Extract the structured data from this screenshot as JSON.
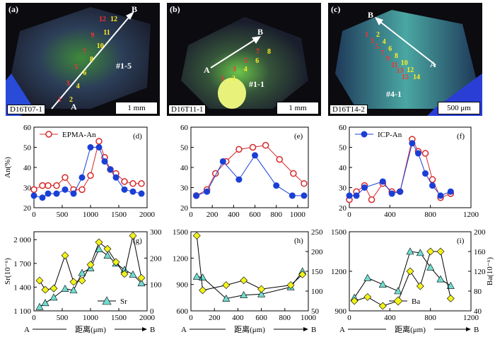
{
  "photos": [
    {
      "label": "(a)",
      "sample": "D16T07-1",
      "scale": "1 mm",
      "zone": "#1-5",
      "pt_a": "A",
      "pt_b": "B",
      "nums_red": [
        "1",
        "3",
        "5",
        "7",
        "9",
        "12"
      ],
      "nums_yel": [
        "2",
        "4",
        "6",
        "8",
        "10",
        "11",
        "12"
      ]
    },
    {
      "label": "(b)",
      "sample": "D16T11-1",
      "scale": "1 mm",
      "zone": "#1-1",
      "pt_a": "A",
      "pt_b": "B",
      "nums_red": [
        "1",
        "3",
        "5",
        "7"
      ],
      "nums_yel": [
        "2",
        "4",
        "6",
        "8"
      ]
    },
    {
      "label": "(c)",
      "sample": "D16T14-2",
      "scale": "500 μm",
      "zone": "#4-1",
      "pt_a": "A",
      "pt_b": "B",
      "nums_red": [
        "15",
        "13",
        "11",
        "9",
        "7",
        "5",
        "3",
        "1"
      ],
      "nums_yel": [
        "14",
        "12",
        "10",
        "8",
        "6",
        "4",
        "2"
      ]
    }
  ],
  "chart_data": [
    {
      "type": "line",
      "panel": "(d)",
      "ylabel": "An(%)",
      "ylim": [
        20,
        60
      ],
      "xlim": [
        0,
        2000
      ],
      "yticks": [
        20,
        30,
        40,
        50,
        60
      ],
      "xticks": [
        0,
        500,
        1000,
        1500,
        2000
      ],
      "legend": "EPMA-An",
      "legend_position": "top-left",
      "series": [
        {
          "name": "EPMA-An",
          "color": "#d62728",
          "marker": "open-circle",
          "x": [
            0,
            150,
            250,
            400,
            550,
            700,
            850,
            1000,
            1150,
            1250,
            1350,
            1450,
            1600,
            1750,
            1900
          ],
          "y": [
            29,
            31,
            31,
            31,
            35,
            29,
            29,
            36,
            53,
            45,
            39,
            37,
            33,
            32,
            32
          ]
        },
        {
          "name": "ICP-An",
          "color": "#1a3fd6",
          "marker": "filled-circle",
          "x": [
            0,
            150,
            250,
            400,
            550,
            700,
            850,
            1000,
            1150,
            1250,
            1350,
            1450,
            1600,
            1750,
            1900
          ],
          "y": [
            26,
            25,
            27,
            27,
            29,
            27,
            35,
            50,
            50,
            43,
            39,
            35,
            29,
            28,
            27
          ]
        }
      ]
    },
    {
      "type": "line",
      "panel": "(e)",
      "ylim": [
        20,
        60
      ],
      "xlim": [
        0,
        1100
      ],
      "yticks": [
        20,
        30,
        40,
        50,
        60
      ],
      "xticks": [
        0,
        200,
        400,
        600,
        800,
        1000
      ],
      "series": [
        {
          "name": "EPMA-An",
          "color": "#d62728",
          "marker": "open-circle",
          "x": [
            50,
            150,
            230,
            330,
            450,
            580,
            700,
            830,
            960,
            1060
          ],
          "y": [
            26,
            29,
            37,
            43,
            49,
            50,
            51,
            44,
            37,
            32
          ]
        },
        {
          "name": "ICP-An",
          "color": "#1a3fd6",
          "marker": "filled-circle",
          "x": [
            50,
            150,
            300,
            450,
            600,
            800,
            950,
            1060
          ],
          "y": [
            26,
            28,
            43,
            34,
            46,
            31,
            26,
            26
          ]
        }
      ]
    },
    {
      "type": "line",
      "panel": "(f)",
      "ylim": [
        20,
        60
      ],
      "xlim": [
        0,
        1200
      ],
      "yticks": [
        20,
        30,
        40,
        50,
        60
      ],
      "xticks": [
        0,
        400,
        800,
        1200
      ],
      "legend": "ICP-An",
      "legend_position": "top-left",
      "series": [
        {
          "name": "EPMA-An",
          "color": "#d62728",
          "marker": "open-circle",
          "x": [
            0,
            70,
            150,
            220,
            330,
            420,
            500,
            620,
            680,
            750,
            820,
            900,
            1000
          ],
          "y": [
            24,
            28,
            31,
            24,
            32,
            28,
            28,
            54,
            48,
            47,
            34,
            25,
            27
          ]
        },
        {
          "name": "ICP-An",
          "color": "#1a3fd6",
          "marker": "filled-circle",
          "x": [
            0,
            70,
            150,
            330,
            420,
            500,
            620,
            680,
            750,
            820,
            900,
            1000
          ],
          "y": [
            26,
            26,
            30,
            33,
            27,
            28,
            52,
            47,
            37,
            31,
            26,
            28
          ]
        }
      ]
    },
    {
      "type": "line",
      "panel": "(g)",
      "ylabel": "Sr(10⁻⁶)",
      "ylim": [
        1100,
        2100
      ],
      "y2lim": [
        0,
        300
      ],
      "xlim": [
        0,
        2000
      ],
      "yticks": [
        "1 100",
        "1 400",
        "1 700",
        "2 000"
      ],
      "y2ticks": [
        0,
        100,
        200,
        300
      ],
      "xticks": [
        0,
        500,
        1000,
        1500,
        2000
      ],
      "legend": "Sr",
      "legend_position": "bottom-right",
      "series": [
        {
          "name": "Sr",
          "axis": "left",
          "color": "#70dcd0",
          "marker": "triangle",
          "x": [
            100,
            200,
            350,
            550,
            700,
            850,
            1000,
            1150,
            1300,
            1450,
            1600,
            1750,
            1900
          ],
          "y": [
            1150,
            1200,
            1270,
            1380,
            1360,
            1580,
            1640,
            1880,
            1800,
            1700,
            1620,
            1560,
            1450
          ]
        },
        {
          "name": "Ba",
          "axis": "right",
          "color": "#f2f21a",
          "marker": "diamond",
          "x": [
            100,
            200,
            350,
            550,
            700,
            850,
            1000,
            1150,
            1300,
            1450,
            1600,
            1750,
            1900
          ],
          "y": [
            115,
            80,
            85,
            210,
            110,
            115,
            175,
            260,
            235,
            185,
            140,
            285,
            125
          ]
        }
      ]
    },
    {
      "type": "line",
      "panel": "(h)",
      "ylim": [
        600,
        1500
      ],
      "y2lim": [
        50,
        250
      ],
      "xlim": [
        0,
        1000
      ],
      "yticks": [
        600,
        900,
        1200,
        1500
      ],
      "y2ticks": [
        50,
        100,
        150,
        200,
        250
      ],
      "xticks": [
        0,
        200,
        400,
        600,
        800,
        1000
      ],
      "series": [
        {
          "name": "Sr",
          "axis": "left",
          "color": "#70dcd0",
          "marker": "triangle",
          "x": [
            50,
            100,
            300,
            450,
            600,
            850,
            950
          ],
          "y": [
            990,
            980,
            740,
            780,
            790,
            870,
            1050
          ]
        },
        {
          "name": "Ba",
          "axis": "right",
          "color": "#f2f21a",
          "marker": "diamond",
          "x": [
            50,
            100,
            300,
            450,
            600,
            850,
            950
          ],
          "y": [
            240,
            102,
            115,
            127,
            105,
            115,
            142
          ]
        }
      ]
    },
    {
      "type": "line",
      "panel": "(i)",
      "ylabel2": "Ba(10⁻⁶)",
      "ylim": [
        900,
        1500
      ],
      "y2lim": [
        40,
        200
      ],
      "xlim": [
        0,
        1200
      ],
      "yticks": [
        900,
        1200,
        1500
      ],
      "y2ticks": [
        40,
        80,
        120,
        160,
        200
      ],
      "xticks": [
        0,
        400,
        800,
        1200
      ],
      "legend": "Ba",
      "legend_position": "bottom-center",
      "series": [
        {
          "name": "Sr",
          "axis": "left",
          "color": "#70dcd0",
          "marker": "triangle",
          "x": [
            50,
            180,
            330,
            480,
            600,
            700,
            800,
            900,
            1000
          ],
          "y": [
            1000,
            1150,
            1100,
            1050,
            1350,
            1340,
            1230,
            1140,
            1090
          ]
        },
        {
          "name": "Ba",
          "axis": "right",
          "color": "#f2f21a",
          "marker": "diamond",
          "x": [
            50,
            180,
            330,
            480,
            600,
            700,
            800,
            900,
            1000
          ],
          "y": [
            60,
            68,
            50,
            60,
            120,
            90,
            160,
            160,
            65
          ]
        }
      ]
    }
  ],
  "xlabel": "距离(μm)",
  "axis_start": "A",
  "axis_end": "B"
}
